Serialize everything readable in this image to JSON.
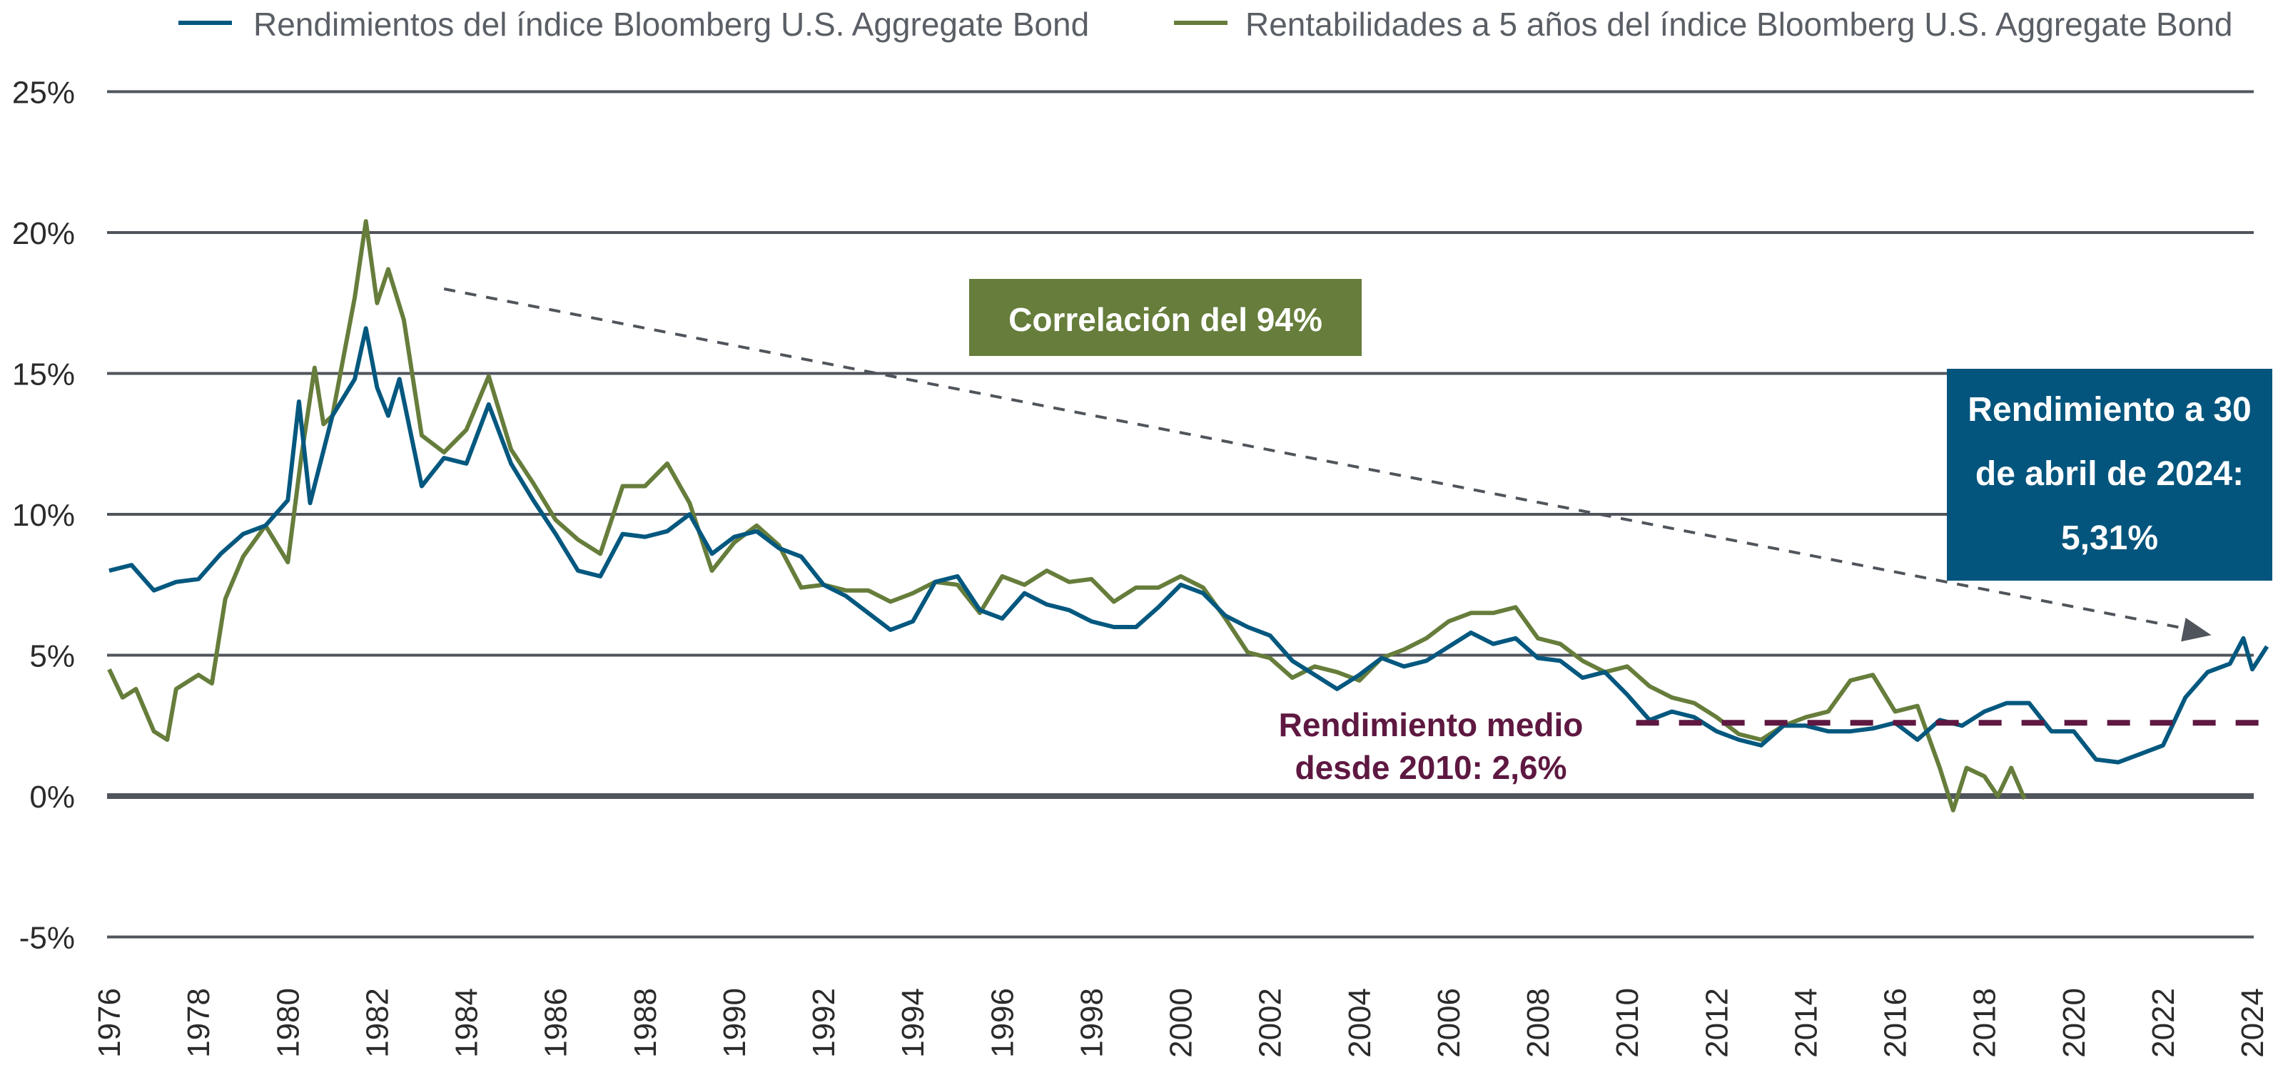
{
  "chart_data": {
    "type": "line",
    "title": "",
    "xlabel": "",
    "ylabel": "",
    "xlim": [
      1976,
      2024
    ],
    "ylim": [
      -5,
      25
    ],
    "yticks": [
      -5,
      0,
      5,
      10,
      15,
      20,
      25
    ],
    "ytick_labels": [
      "-5%",
      "0%",
      "5%",
      "10%",
      "15%",
      "20%",
      "25%"
    ],
    "xtick_labels": [
      "1976",
      "1978",
      "1980",
      "1982",
      "1984",
      "1986",
      "1988",
      "1990",
      "1992",
      "1994",
      "1996",
      "1998",
      "2000",
      "2002",
      "2004",
      "2006",
      "2008",
      "2010",
      "2012",
      "2014",
      "2016",
      "2018",
      "2020",
      "2022",
      "2024"
    ],
    "grid": true,
    "legend_position": "top",
    "series": [
      {
        "name": "Rendimientos del índice Bloomberg U.S. Aggregate Bond",
        "color": "#04587f",
        "points": [
          [
            1976.0,
            8.0
          ],
          [
            1976.5,
            8.2
          ],
          [
            1977.0,
            7.3
          ],
          [
            1977.5,
            7.6
          ],
          [
            1978.0,
            7.7
          ],
          [
            1978.5,
            8.6
          ],
          [
            1979.0,
            9.3
          ],
          [
            1979.5,
            9.6
          ],
          [
            1980.0,
            10.5
          ],
          [
            1980.25,
            14.0
          ],
          [
            1980.5,
            10.4
          ],
          [
            1981.0,
            13.5
          ],
          [
            1981.5,
            14.8
          ],
          [
            1981.75,
            16.6
          ],
          [
            1982.0,
            14.5
          ],
          [
            1982.25,
            13.5
          ],
          [
            1982.5,
            14.8
          ],
          [
            1983.0,
            11.0
          ],
          [
            1983.5,
            12.0
          ],
          [
            1984.0,
            11.8
          ],
          [
            1984.5,
            13.9
          ],
          [
            1985.0,
            11.8
          ],
          [
            1985.5,
            10.5
          ],
          [
            1986.0,
            9.3
          ],
          [
            1986.5,
            8.0
          ],
          [
            1987.0,
            7.8
          ],
          [
            1987.5,
            9.3
          ],
          [
            1988.0,
            9.2
          ],
          [
            1988.5,
            9.4
          ],
          [
            1989.0,
            10.0
          ],
          [
            1989.5,
            8.6
          ],
          [
            1990.0,
            9.2
          ],
          [
            1990.5,
            9.4
          ],
          [
            1991.0,
            8.8
          ],
          [
            1991.5,
            8.5
          ],
          [
            1992.0,
            7.5
          ],
          [
            1992.5,
            7.1
          ],
          [
            1993.0,
            6.5
          ],
          [
            1993.5,
            5.9
          ],
          [
            1994.0,
            6.2
          ],
          [
            1994.5,
            7.6
          ],
          [
            1995.0,
            7.8
          ],
          [
            1995.5,
            6.6
          ],
          [
            1996.0,
            6.3
          ],
          [
            1996.5,
            7.2
          ],
          [
            1997.0,
            6.8
          ],
          [
            1997.5,
            6.6
          ],
          [
            1998.0,
            6.2
          ],
          [
            1998.5,
            6.0
          ],
          [
            1999.0,
            6.0
          ],
          [
            1999.5,
            6.7
          ],
          [
            2000.0,
            7.5
          ],
          [
            2000.5,
            7.2
          ],
          [
            2001.0,
            6.4
          ],
          [
            2001.5,
            6.0
          ],
          [
            2002.0,
            5.7
          ],
          [
            2002.5,
            4.8
          ],
          [
            2003.0,
            4.3
          ],
          [
            2003.5,
            3.8
          ],
          [
            2004.0,
            4.3
          ],
          [
            2004.5,
            4.9
          ],
          [
            2005.0,
            4.6
          ],
          [
            2005.5,
            4.8
          ],
          [
            2006.0,
            5.3
          ],
          [
            2006.5,
            5.8
          ],
          [
            2007.0,
            5.4
          ],
          [
            2007.5,
            5.6
          ],
          [
            2008.0,
            4.9
          ],
          [
            2008.5,
            4.8
          ],
          [
            2009.0,
            4.2
          ],
          [
            2009.5,
            4.4
          ],
          [
            2010.0,
            3.6
          ],
          [
            2010.5,
            2.7
          ],
          [
            2011.0,
            3.0
          ],
          [
            2011.5,
            2.8
          ],
          [
            2012.0,
            2.3
          ],
          [
            2012.5,
            2.0
          ],
          [
            2013.0,
            1.8
          ],
          [
            2013.5,
            2.5
          ],
          [
            2014.0,
            2.5
          ],
          [
            2014.5,
            2.3
          ],
          [
            2015.0,
            2.3
          ],
          [
            2015.5,
            2.4
          ],
          [
            2016.0,
            2.6
          ],
          [
            2016.5,
            2.0
          ],
          [
            2017.0,
            2.7
          ],
          [
            2017.5,
            2.5
          ],
          [
            2018.0,
            3.0
          ],
          [
            2018.5,
            3.3
          ],
          [
            2019.0,
            3.3
          ],
          [
            2019.5,
            2.3
          ],
          [
            2020.0,
            2.3
          ],
          [
            2020.5,
            1.3
          ],
          [
            2021.0,
            1.2
          ],
          [
            2021.5,
            1.5
          ],
          [
            2022.0,
            1.8
          ],
          [
            2022.5,
            3.5
          ],
          [
            2023.0,
            4.4
          ],
          [
            2023.5,
            4.7
          ],
          [
            2023.8,
            5.6
          ],
          [
            2024.0,
            4.5
          ],
          [
            2024.33,
            5.31
          ]
        ]
      },
      {
        "name": "Rentabilidades a 5 años del índice Bloomberg U.S. Aggregate Bond",
        "color": "#667d3b",
        "points": [
          [
            1976.0,
            4.5
          ],
          [
            1976.3,
            3.5
          ],
          [
            1976.6,
            3.8
          ],
          [
            1977.0,
            2.3
          ],
          [
            1977.3,
            2.0
          ],
          [
            1977.5,
            3.8
          ],
          [
            1978.0,
            4.3
          ],
          [
            1978.3,
            4.0
          ],
          [
            1978.6,
            7.0
          ],
          [
            1979.0,
            8.5
          ],
          [
            1979.5,
            9.6
          ],
          [
            1980.0,
            8.3
          ],
          [
            1980.3,
            12.0
          ],
          [
            1980.6,
            15.2
          ],
          [
            1980.8,
            13.2
          ],
          [
            1981.0,
            13.5
          ],
          [
            1981.5,
            17.7
          ],
          [
            1981.75,
            20.4
          ],
          [
            1982.0,
            17.5
          ],
          [
            1982.25,
            18.7
          ],
          [
            1982.6,
            16.9
          ],
          [
            1983.0,
            12.8
          ],
          [
            1983.5,
            12.2
          ],
          [
            1984.0,
            13.0
          ],
          [
            1984.5,
            14.9
          ],
          [
            1985.0,
            12.3
          ],
          [
            1985.5,
            11.1
          ],
          [
            1986.0,
            9.8
          ],
          [
            1986.5,
            9.1
          ],
          [
            1987.0,
            8.6
          ],
          [
            1987.5,
            11.0
          ],
          [
            1988.0,
            11.0
          ],
          [
            1988.5,
            11.8
          ],
          [
            1989.0,
            10.4
          ],
          [
            1989.5,
            8.0
          ],
          [
            1990.0,
            9.0
          ],
          [
            1990.5,
            9.6
          ],
          [
            1991.0,
            8.9
          ],
          [
            1991.5,
            7.4
          ],
          [
            1992.0,
            7.5
          ],
          [
            1992.5,
            7.3
          ],
          [
            1993.0,
            7.3
          ],
          [
            1993.5,
            6.9
          ],
          [
            1994.0,
            7.2
          ],
          [
            1994.5,
            7.6
          ],
          [
            1995.0,
            7.5
          ],
          [
            1995.5,
            6.5
          ],
          [
            1996.0,
            7.8
          ],
          [
            1996.5,
            7.5
          ],
          [
            1997.0,
            8.0
          ],
          [
            1997.5,
            7.6
          ],
          [
            1998.0,
            7.7
          ],
          [
            1998.5,
            6.9
          ],
          [
            1999.0,
            7.4
          ],
          [
            1999.5,
            7.4
          ],
          [
            2000.0,
            7.8
          ],
          [
            2000.5,
            7.4
          ],
          [
            2001.0,
            6.3
          ],
          [
            2001.5,
            5.1
          ],
          [
            2002.0,
            4.9
          ],
          [
            2002.5,
            4.2
          ],
          [
            2003.0,
            4.6
          ],
          [
            2003.5,
            4.4
          ],
          [
            2004.0,
            4.1
          ],
          [
            2004.5,
            4.9
          ],
          [
            2005.0,
            5.2
          ],
          [
            2005.5,
            5.6
          ],
          [
            2006.0,
            6.2
          ],
          [
            2006.5,
            6.5
          ],
          [
            2007.0,
            6.5
          ],
          [
            2007.5,
            6.7
          ],
          [
            2008.0,
            5.6
          ],
          [
            2008.5,
            5.4
          ],
          [
            2009.0,
            4.8
          ],
          [
            2009.5,
            4.4
          ],
          [
            2010.0,
            4.6
          ],
          [
            2010.5,
            3.9
          ],
          [
            2011.0,
            3.5
          ],
          [
            2011.5,
            3.3
          ],
          [
            2012.0,
            2.8
          ],
          [
            2012.5,
            2.2
          ],
          [
            2013.0,
            2.0
          ],
          [
            2013.5,
            2.5
          ],
          [
            2014.0,
            2.8
          ],
          [
            2014.5,
            3.0
          ],
          [
            2015.0,
            4.1
          ],
          [
            2015.5,
            4.3
          ],
          [
            2016.0,
            3.0
          ],
          [
            2016.5,
            3.2
          ],
          [
            2017.0,
            1.0
          ],
          [
            2017.3,
            -0.5
          ],
          [
            2017.6,
            1.0
          ],
          [
            2018.0,
            0.7
          ],
          [
            2018.3,
            0.0
          ],
          [
            2018.6,
            1.0
          ],
          [
            2018.9,
            -0.1
          ]
        ]
      }
    ],
    "reference_line": {
      "label": "Rendimiento medio desde 2010: 2,6%",
      "value": 2.6,
      "from": 2010.2,
      "to": 2024.33,
      "color": "#5e1841"
    },
    "trend_arrow": {
      "from": [
        1983.5,
        18.0
      ],
      "to": [
        2022.8,
        5.8
      ]
    },
    "annotations": {
      "correlation": {
        "text": "Correlación del 94%",
        "bg": "#667d3b"
      },
      "current_yield": {
        "lines": [
          "Rendimiento a 30",
          "de abril de 2024:",
          "5,31%"
        ],
        "bg": "#03557d"
      },
      "average": {
        "lines": [
          "Rendimiento medio",
          "desde 2010: 2,6%"
        ],
        "color": "#5e1841"
      }
    }
  }
}
